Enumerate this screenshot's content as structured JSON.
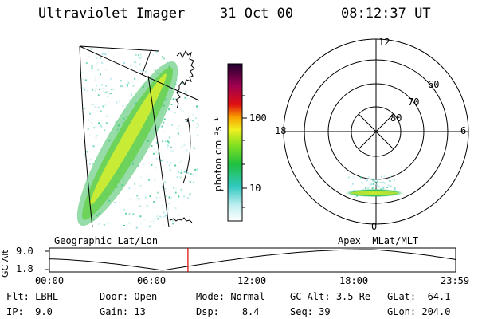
{
  "header": {
    "instrument": "Ultraviolet Imager",
    "date": "31 Oct 00",
    "time": "08:12:37 UT"
  },
  "geographic_panel": {
    "label": "Geographic Lat/Lon"
  },
  "colorbar": {
    "unit_label": "photon cm⁻²s⁻¹",
    "ticks": [
      "100",
      "10"
    ]
  },
  "polar_plot": {
    "label": "Apex  MLat/MLT",
    "mlt_labels": {
      "top": "12",
      "left": "18",
      "right": "6",
      "bottom": "0"
    },
    "lat_rings": [
      "60",
      "70",
      "80"
    ]
  },
  "timeline": {
    "axis_label": "GC Alt",
    "y_ticks": [
      "9.0",
      "1.8"
    ],
    "x_ticks": [
      "00:00",
      "06:00",
      "12:00",
      "18:00",
      "23:59"
    ],
    "current_time_fraction": 0.341,
    "marker_color": "#dd0000"
  },
  "status": {
    "row1": [
      {
        "key": "Flt:",
        "value": "LBHL"
      },
      {
        "key": "Door:",
        "value": "Open"
      },
      {
        "key": "Mode:",
        "value": "Normal"
      },
      {
        "key": "GC Alt:",
        "value": "3.5 Re"
      },
      {
        "key": "GLat:",
        "value": "-64.1"
      }
    ],
    "row2": [
      {
        "key": "IP:",
        "value": "9.0"
      },
      {
        "key": "Gain:",
        "value": "13"
      },
      {
        "key": "Dsp:",
        "value": "8.4"
      },
      {
        "key": "Seq:",
        "value": "39"
      },
      {
        "key": "GLon:",
        "value": "204.0"
      }
    ]
  }
}
